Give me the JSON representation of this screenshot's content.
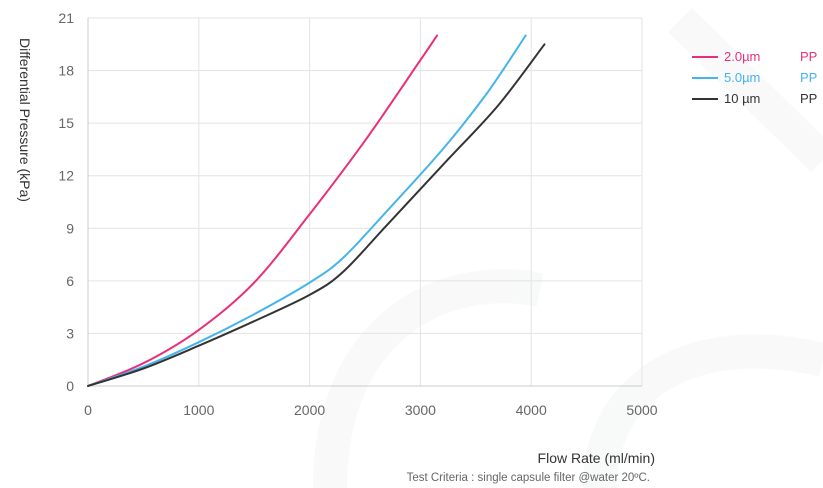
{
  "chart_data": {
    "type": "line",
    "xlabel": "Flow Rate (ml/min)",
    "ylabel": "Differential Pressure (kPa)",
    "note": "Test Criteria : single capsule filter @water 20ºC.",
    "xlim": [
      0,
      5000
    ],
    "ylim": [
      0,
      21
    ],
    "xticks": [
      "0",
      "1000",
      "2000",
      "3000",
      "4000",
      "5000"
    ],
    "yticks": [
      "0",
      "3",
      "6",
      "9",
      "12",
      "15",
      "18",
      "21"
    ],
    "grid": true,
    "legend_position": "right",
    "series": [
      {
        "size": "2.0µm",
        "material": "PP",
        "color": "#e8307a",
        "points": [
          [
            0,
            0
          ],
          [
            500,
            1.3
          ],
          [
            1000,
            3.2
          ],
          [
            1500,
            5.9
          ],
          [
            2000,
            9.8
          ],
          [
            2500,
            14.0
          ],
          [
            3000,
            18.6
          ],
          [
            3150,
            20.0
          ]
        ]
      },
      {
        "size": "5.0µm",
        "material": "PP",
        "color": "#45b4ec",
        "points": [
          [
            0,
            0
          ],
          [
            500,
            1.1
          ],
          [
            1000,
            2.5
          ],
          [
            1500,
            4.1
          ],
          [
            2000,
            5.9
          ],
          [
            2300,
            7.3
          ],
          [
            2700,
            10.0
          ],
          [
            3200,
            13.5
          ],
          [
            3600,
            16.7
          ],
          [
            3950,
            20.0
          ]
        ]
      },
      {
        "size": "10 µm",
        "material": "PP",
        "color": "#333333",
        "points": [
          [
            0,
            0
          ],
          [
            500,
            1.0
          ],
          [
            1000,
            2.3
          ],
          [
            1500,
            3.7
          ],
          [
            2000,
            5.2
          ],
          [
            2300,
            6.5
          ],
          [
            2700,
            9.2
          ],
          [
            3200,
            12.6
          ],
          [
            3700,
            16.0
          ],
          [
            4120,
            19.5
          ]
        ]
      }
    ]
  }
}
